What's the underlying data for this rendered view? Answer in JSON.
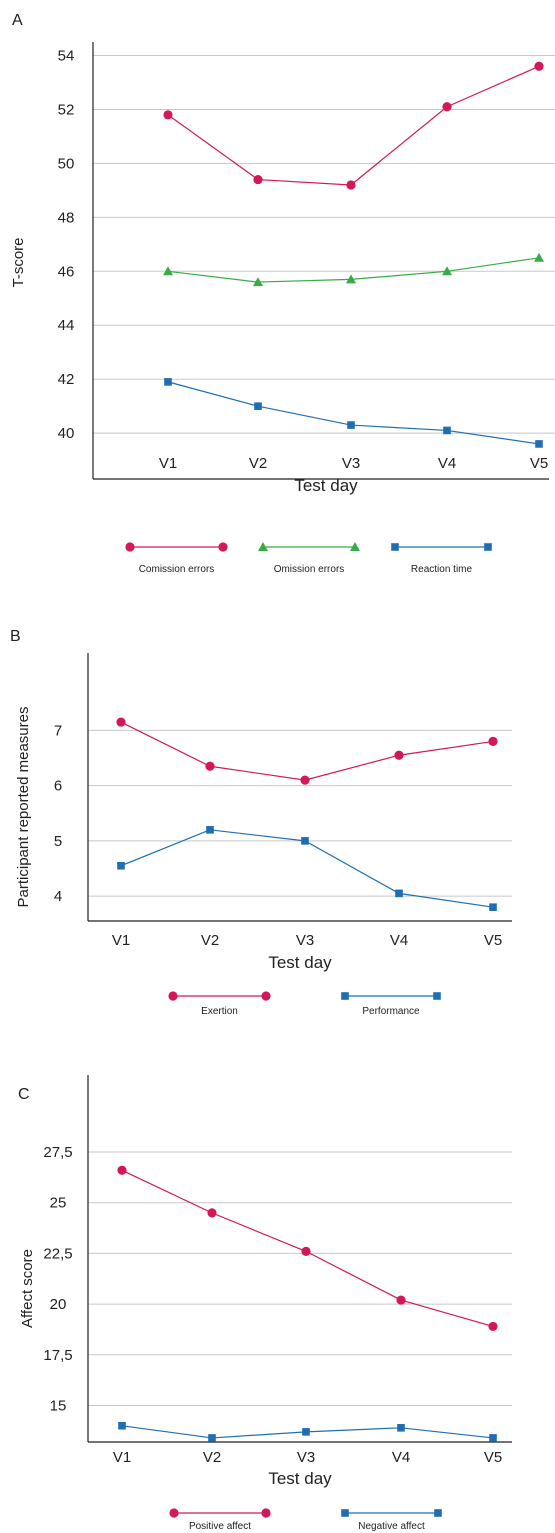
{
  "colors": {
    "commission": "#d4175a",
    "omission": "#3aaa45",
    "reaction": "#1f6eb3",
    "grid": "#c8c8c8",
    "axis": "#222222"
  },
  "chart_data": [
    {
      "panel": "A",
      "type": "line",
      "xlabel": "Test day",
      "ylabel": "T-score",
      "categories": [
        "V1",
        "V2",
        "V3",
        "V4",
        "V5"
      ],
      "yticks": [
        "40",
        "42",
        "44",
        "46",
        "48",
        "50",
        "52",
        "54"
      ],
      "ylim": [
        38.3,
        54.5
      ],
      "grid": true,
      "legend_position": "bottom",
      "series": [
        {
          "name": "Comission errors",
          "marker": "circle",
          "color": "#d4175a",
          "values": [
            51.8,
            49.4,
            49.2,
            52.1,
            53.6
          ]
        },
        {
          "name": "Omission errors",
          "marker": "triangle",
          "color": "#3aaa45",
          "values": [
            46.0,
            45.6,
            45.7,
            46.0,
            46.5
          ]
        },
        {
          "name": "Reaction time",
          "marker": "square",
          "color": "#1f6eb3",
          "values": [
            41.9,
            41.0,
            40.3,
            40.1,
            39.6
          ]
        }
      ]
    },
    {
      "panel": "B",
      "type": "line",
      "xlabel": "Test day",
      "ylabel": "Participant reported measures",
      "categories": [
        "V1",
        "V2",
        "V3",
        "V4",
        "V5"
      ],
      "yticks": [
        "4",
        "5",
        "6",
        "7"
      ],
      "ylim": [
        3.55,
        8.4
      ],
      "grid": true,
      "legend_position": "bottom",
      "series": [
        {
          "name": "Exertion",
          "marker": "circle",
          "color": "#d4175a",
          "values": [
            7.15,
            6.35,
            6.1,
            6.55,
            6.8
          ]
        },
        {
          "name": "Performance",
          "marker": "square",
          "color": "#1f6eb3",
          "values": [
            4.55,
            5.2,
            5.0,
            4.05,
            3.8
          ]
        }
      ]
    },
    {
      "panel": "C",
      "type": "line",
      "xlabel": "Test day",
      "ylabel": "Affect score",
      "categories": [
        "V1",
        "V2",
        "V3",
        "V4",
        "V5"
      ],
      "yticks": [
        "15",
        "17,5",
        "20",
        "22,5",
        "25",
        "27,5"
      ],
      "ylim": [
        13.2,
        31.3
      ],
      "grid": true,
      "legend_position": "bottom",
      "series": [
        {
          "name": "Positive affect",
          "marker": "circle",
          "color": "#d4175a",
          "values": [
            26.6,
            24.5,
            22.6,
            20.2,
            18.9
          ]
        },
        {
          "name": "Negative affect",
          "marker": "square",
          "color": "#1f6eb3",
          "values": [
            14.0,
            13.4,
            13.7,
            13.9,
            13.4
          ]
        }
      ]
    }
  ]
}
